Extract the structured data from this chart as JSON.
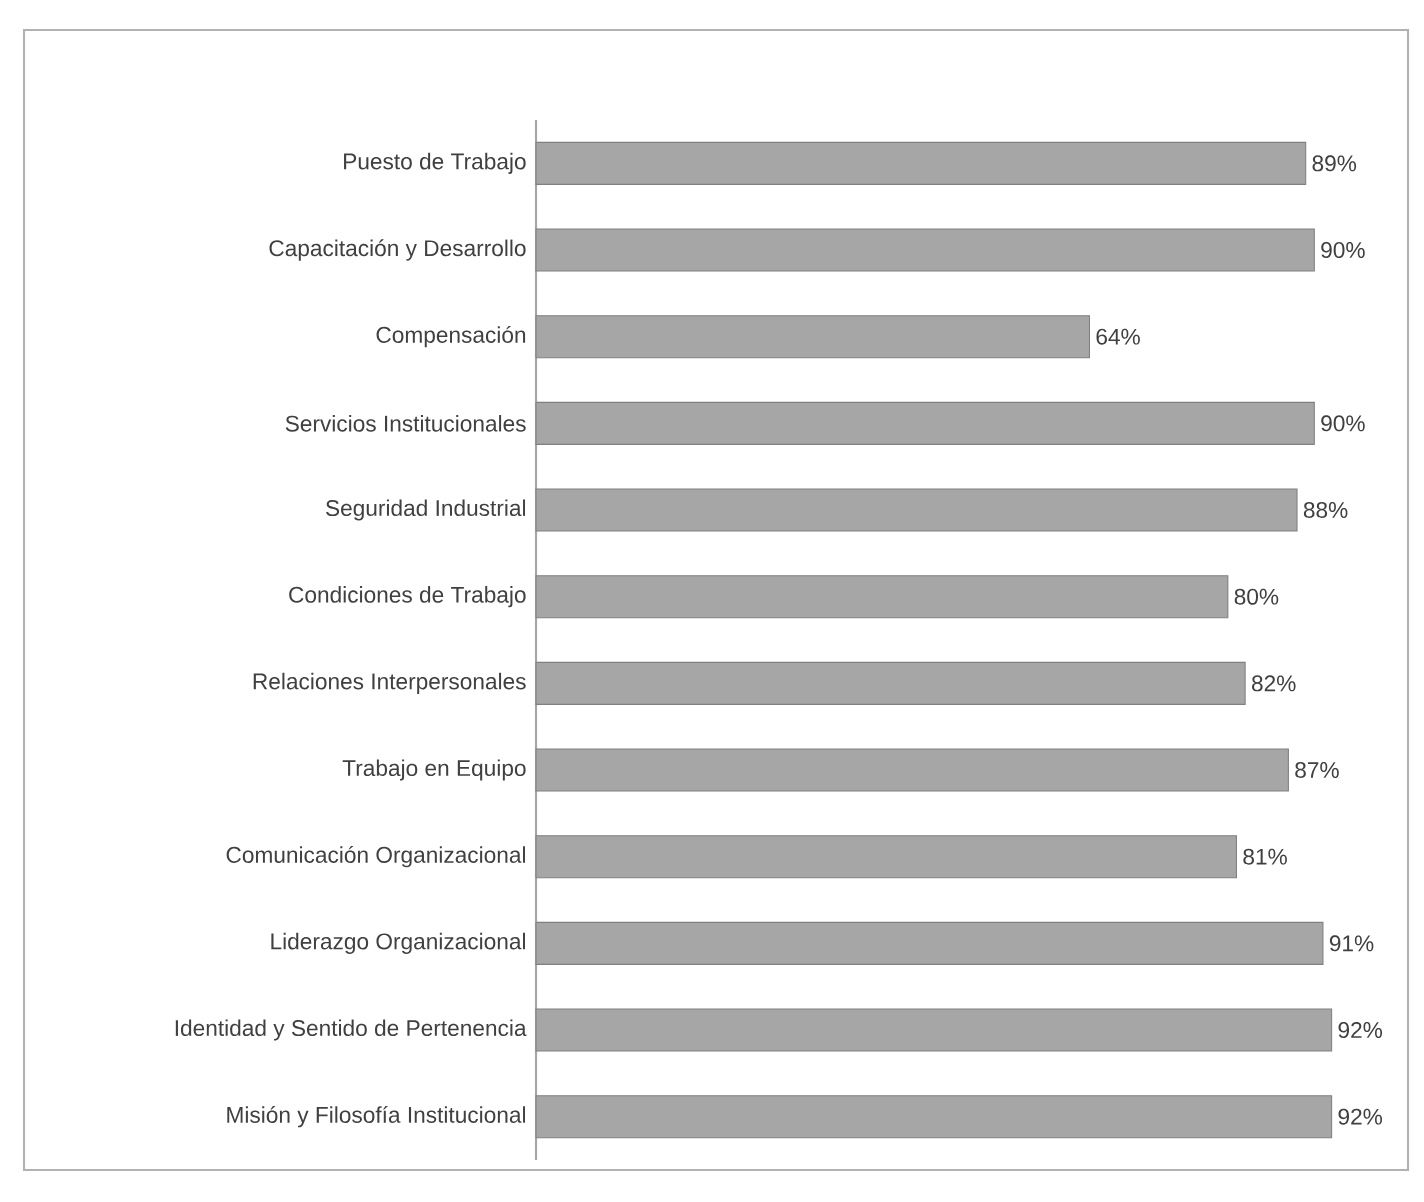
{
  "chart_data": {
    "type": "bar",
    "orientation": "horizontal",
    "categories": [
      "Puesto de Trabajo",
      "Capacitación y Desarrollo",
      "Compensación",
      "Servicios Institucionales",
      "Seguridad Industrial",
      "Condiciones de Trabajo",
      "Relaciones Interpersonales",
      "Trabajo en Equipo",
      "Comunicación Organizacional",
      "Liderazgo Organizacional",
      "Identidad y Sentido de Pertenencia",
      "Misión y Filosofía Institucional"
    ],
    "values": [
      89,
      90,
      64,
      90,
      88,
      80,
      82,
      87,
      81,
      91,
      92,
      92
    ],
    "value_labels": [
      "89%",
      "90%",
      "64%",
      "90%",
      "88%",
      "80%",
      "82%",
      "87%",
      "81%",
      "91%",
      "92%",
      "92%"
    ],
    "color": "#a6a6a6",
    "grid": false
  }
}
